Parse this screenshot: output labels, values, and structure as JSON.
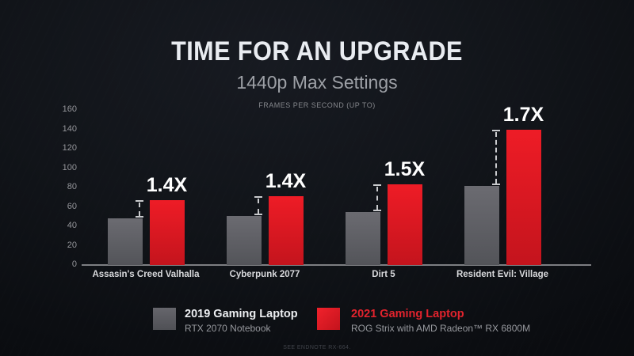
{
  "header": {
    "title": "TIME FOR AN UPGRADE",
    "subtitle": "1440p Max Settings",
    "caption": "FRAMES PER SECOND (UP TO)"
  },
  "chart_data": {
    "type": "bar",
    "categories": [
      "Assasin's Creed Valhalla",
      "Cyberpunk 2077",
      "Dirt 5",
      "Resident Evil: Village"
    ],
    "series": [
      {
        "name": "2019 Gaming Laptop",
        "values": [
          48,
          51,
          55,
          82
        ]
      },
      {
        "name": "2021 Gaming Laptop",
        "values": [
          67,
          71,
          83,
          140
        ]
      }
    ],
    "multipliers": [
      "1.4X",
      "1.4X",
      "1.5X",
      "1.7X"
    ],
    "title": "TIME FOR AN UPGRADE",
    "subtitle": "1440p Max Settings",
    "ylabel": "FRAMES PER SECOND (UP TO)",
    "ylim": [
      0,
      160
    ],
    "yticks": [
      0,
      20,
      40,
      60,
      80,
      100,
      120,
      140,
      160
    ],
    "grid": false,
    "legend_position": "bottom",
    "colors": {
      "series1": "#5d5e63",
      "series2": "#e2202a"
    }
  },
  "legend": {
    "item1": {
      "label": "2019 Gaming Laptop",
      "sublabel": "RTX 2070 Notebook"
    },
    "item2": {
      "label": "2021 Gaming Laptop",
      "sublabel": "ROG Strix with AMD Radeon™ RX 6800M"
    }
  },
  "footnote": "SEE ENDNOTE RX-664."
}
